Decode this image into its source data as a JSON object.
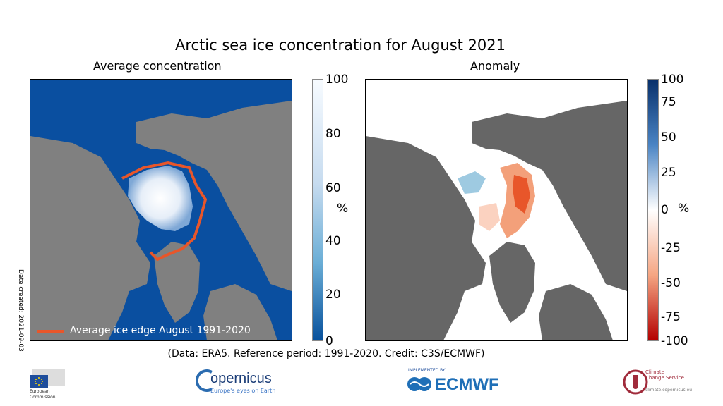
{
  "title": "Arctic sea ice concentration for August 2021",
  "left_panel": {
    "subtitle": "Average concentration",
    "legend_label": "Average ice edge August 1991-2020",
    "date_created": "Date created: 2021-09-03",
    "colorbar": {
      "ticks": [
        "100",
        "80",
        "60",
        "40",
        "20",
        "0"
      ],
      "unit": "%",
      "colors": [
        "#f7fbff",
        "#08519c"
      ]
    }
  },
  "right_panel": {
    "subtitle": "Anomaly",
    "colorbar": {
      "ticks": [
        "100",
        "75",
        "50",
        "25",
        "0",
        "-25",
        "-50",
        "-75",
        "-100"
      ],
      "unit": "%",
      "colors": [
        "#08306b",
        "#ffffff",
        "#b30000"
      ]
    }
  },
  "colors": {
    "ocean": "#0a4fa0",
    "land": "#808080",
    "ice_edge": "#e8562a"
  },
  "footer": "(Data: ERA5.  Reference period: 1991-2020.  Credit: C3S/ECMWF)",
  "logos": {
    "eu": [
      "European",
      "Commission"
    ],
    "copernicus": {
      "name": "opernicus",
      "tagline": "Europe's eyes on Earth"
    },
    "ecmwf": {
      "implemented_by": "IMPLEMENTED BY",
      "name": "ECMWF"
    },
    "c3s": [
      "Climate",
      "Change Service",
      "climate.copernicus.eu"
    ]
  }
}
